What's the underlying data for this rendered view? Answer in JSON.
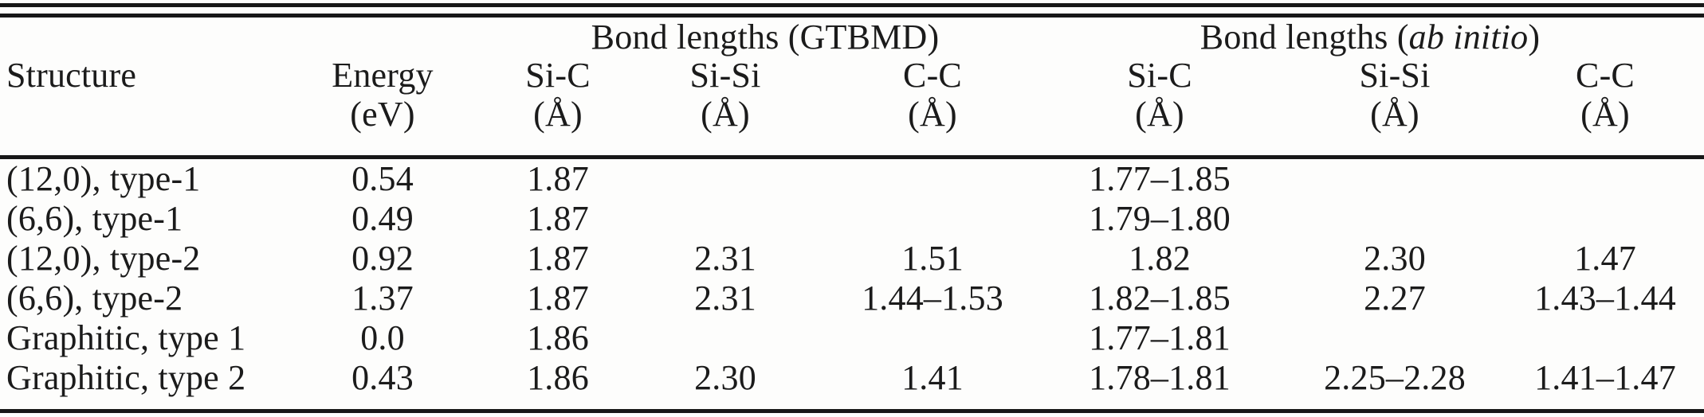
{
  "colors": {
    "text": "#1b1b1b",
    "rule": "#171717",
    "background": "#fdfdfc"
  },
  "table": {
    "group_headers": [
      {
        "name": "gtbmd",
        "parts": [
          {
            "t": "Bond lengths (GTBMD)",
            "italic": false
          }
        ]
      },
      {
        "name": "ab-initio",
        "parts": [
          {
            "t": "Bond lengths (",
            "italic": false
          },
          {
            "t": "ab initio",
            "italic": true
          },
          {
            "t": ")",
            "italic": false
          }
        ]
      }
    ],
    "columns": [
      {
        "name": "Structure",
        "unit": ""
      },
      {
        "name": "Energy",
        "unit": "(eV)"
      },
      {
        "name": "Si-C",
        "unit": "(Å)"
      },
      {
        "name": "Si-Si",
        "unit": "(Å)"
      },
      {
        "name": "C-C",
        "unit": "(Å)"
      },
      {
        "name": "Si-C",
        "unit": "(Å)"
      },
      {
        "name": "Si-Si",
        "unit": "(Å)"
      },
      {
        "name": "C-C",
        "unit": "(Å)"
      }
    ],
    "rows": [
      {
        "cells": [
          "(12,0), type-1",
          "0.54",
          "1.87",
          "",
          "",
          "1.77–1.85",
          "",
          ""
        ]
      },
      {
        "cells": [
          "(6,6), type-1",
          "0.49",
          "1.87",
          "",
          "",
          "1.79–1.80",
          "",
          ""
        ]
      },
      {
        "cells": [
          "(12,0), type-2",
          "0.92",
          "1.87",
          "2.31",
          "1.51",
          "1.82",
          "2.30",
          "1.47"
        ]
      },
      {
        "cells": [
          "(6,6), type-2",
          "1.37",
          "1.87",
          "2.31",
          "1.44–1.53",
          "1.82–1.85",
          "2.27",
          "1.43–1.44"
        ]
      },
      {
        "cells": [
          "Graphitic, type 1",
          "0.0",
          "1.86",
          "",
          "",
          "1.77–1.81",
          "",
          ""
        ]
      },
      {
        "cells": [
          "Graphitic, type 2",
          "0.43",
          "1.86",
          "2.30",
          "1.41",
          "1.78–1.81",
          "2.25–2.28",
          "1.41–1.47"
        ]
      }
    ]
  }
}
